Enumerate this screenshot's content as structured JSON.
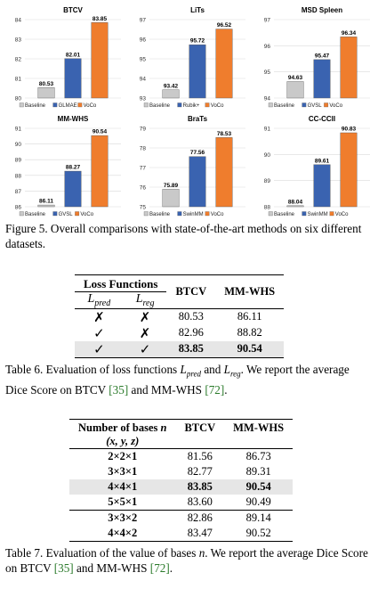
{
  "chart_data": [
    {
      "type": "bar",
      "title": "BTCV",
      "categories": [
        "Baseline",
        "GLMAE",
        "VoCo"
      ],
      "values": [
        80.53,
        82.01,
        83.85
      ],
      "ylim": [
        80,
        84
      ],
      "yticks": [
        80,
        81,
        82,
        83,
        84
      ]
    },
    {
      "type": "bar",
      "title": "LiTs",
      "categories": [
        "Baseline",
        "Rubik+",
        "VoCo"
      ],
      "values": [
        93.42,
        95.72,
        96.52
      ],
      "ylim": [
        93,
        97
      ],
      "yticks": [
        93,
        94,
        95,
        96,
        97
      ]
    },
    {
      "type": "bar",
      "title": "MSD Spleen",
      "categories": [
        "Baseline",
        "GVSL",
        "VoCo"
      ],
      "values": [
        94.63,
        95.47,
        96.34
      ],
      "ylim": [
        94,
        97
      ],
      "yticks": [
        94,
        95,
        96,
        97
      ]
    },
    {
      "type": "bar",
      "title": "MM-WHS",
      "categories": [
        "Baseline",
        "GVSL",
        "VoCo"
      ],
      "values": [
        86.11,
        88.27,
        90.54
      ],
      "ylim": [
        86,
        91
      ],
      "yticks": [
        86,
        87,
        88,
        89,
        90,
        91
      ]
    },
    {
      "type": "bar",
      "title": "BraTs",
      "categories": [
        "Baseline",
        "SwinMM",
        "VoCo"
      ],
      "values": [
        75.89,
        77.56,
        78.53
      ],
      "ylim": [
        75,
        79
      ],
      "yticks": [
        75,
        76,
        77,
        78,
        79
      ]
    },
    {
      "type": "bar",
      "title": "CC-CCII",
      "categories": [
        "Baseline",
        "SwinMM",
        "VoCo"
      ],
      "values": [
        88.04,
        89.61,
        90.83
      ],
      "ylim": [
        88,
        91
      ],
      "yticks": [
        88,
        89,
        90,
        91
      ]
    }
  ],
  "colors": {
    "baseline": "#c9c9c9",
    "second": "#3a63b0",
    "voco": "#ef7d2d"
  },
  "figure5_caption": "Figure 5. Overall comparisons with state-of-the-art methods on six different datasets.",
  "table6": {
    "header_group": "Loss Functions",
    "h_pred": "L",
    "h_pred_sub": "pred",
    "h_reg": "L",
    "h_reg_sub": "reg",
    "col_btcv": "BTCV",
    "col_mmwhs": "MM-WHS",
    "rows": [
      {
        "pred": "✗",
        "reg": "✗",
        "btcv": "80.53",
        "mmwhs": "86.11"
      },
      {
        "pred": "✓",
        "reg": "✗",
        "btcv": "82.96",
        "mmwhs": "88.82"
      },
      {
        "pred": "✓",
        "reg": "✓",
        "btcv": "83.85",
        "mmwhs": "90.54"
      }
    ]
  },
  "table6_caption": {
    "part1": "Table 6. Evaluation of loss functions ",
    "l1": "L",
    "l1_sub": "pred",
    "part2": " and ",
    "l2": "L",
    "l2_sub": "reg",
    "part3": ". We report the average Dice Score on BTCV ",
    "cite1": "[35]",
    "part4": " and MM-WHS ",
    "cite2": "[72]",
    "part5": "."
  },
  "table7": {
    "h_bases": "Number of bases ",
    "h_bases_n": "n",
    "h_xyz": "(x, y, z)",
    "col_btcv": "BTCV",
    "col_mmwhs": "MM-WHS",
    "rows": [
      {
        "bases": "2×2×1",
        "btcv": "81.56",
        "mmwhs": "86.73"
      },
      {
        "bases": "3×3×1",
        "btcv": "82.77",
        "mmwhs": "89.31"
      },
      {
        "bases": "4×4×1",
        "btcv": "83.85",
        "mmwhs": "90.54"
      },
      {
        "bases": "5×5×1",
        "btcv": "83.60",
        "mmwhs": "90.49"
      },
      {
        "bases": "3×3×2",
        "btcv": "82.86",
        "mmwhs": "89.14"
      },
      {
        "bases": "4×4×2",
        "btcv": "83.47",
        "mmwhs": "90.52"
      }
    ]
  },
  "table7_caption": {
    "part1": "Table 7. Evaluation of the value of bases ",
    "n": "n",
    "part2": ". We report the average Dice Score on BTCV ",
    "cite1": "[35]",
    "part3": " and MM-WHS ",
    "cite2": "[72]",
    "part4": "."
  }
}
